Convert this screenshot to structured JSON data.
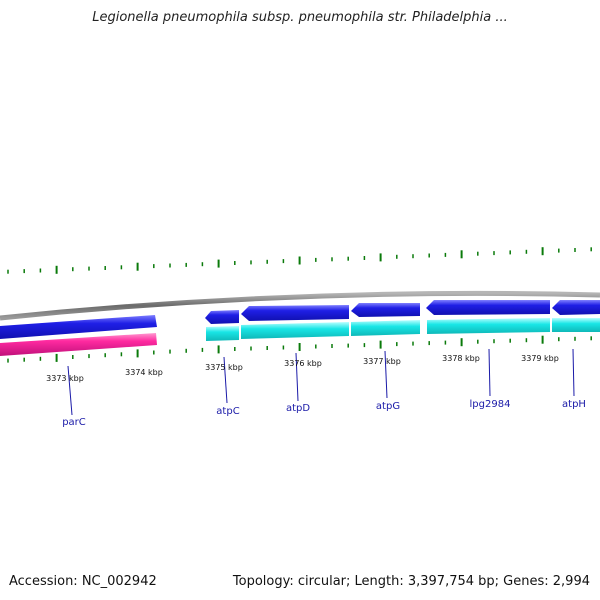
{
  "title": "Legionella pneumophila subsp. pneumophila str. Philadelphia ...",
  "footer": {
    "accession": "Accession: NC_002942",
    "summary": "Topology: circular; Length: 3,397,754 bp; Genes: 2,994"
  },
  "colors": {
    "backbone": "#7f7f7f",
    "forward_cds": "#1f1fe6",
    "reverse_cds": "#ff2aa0",
    "rna_feature": "#19e6e6",
    "tick": "#0a7a0a",
    "gene_label": "#1a1aa8"
  },
  "scale_labels": [
    "3373 kbp",
    "3374 kbp",
    "3375 kbp",
    "3376 kbp",
    "3377 kbp",
    "3378 kbp",
    "3379 kbp"
  ],
  "gene_labels": [
    "parC",
    "atpC",
    "atpD",
    "atpG",
    "lpg2984",
    "atpH"
  ]
}
